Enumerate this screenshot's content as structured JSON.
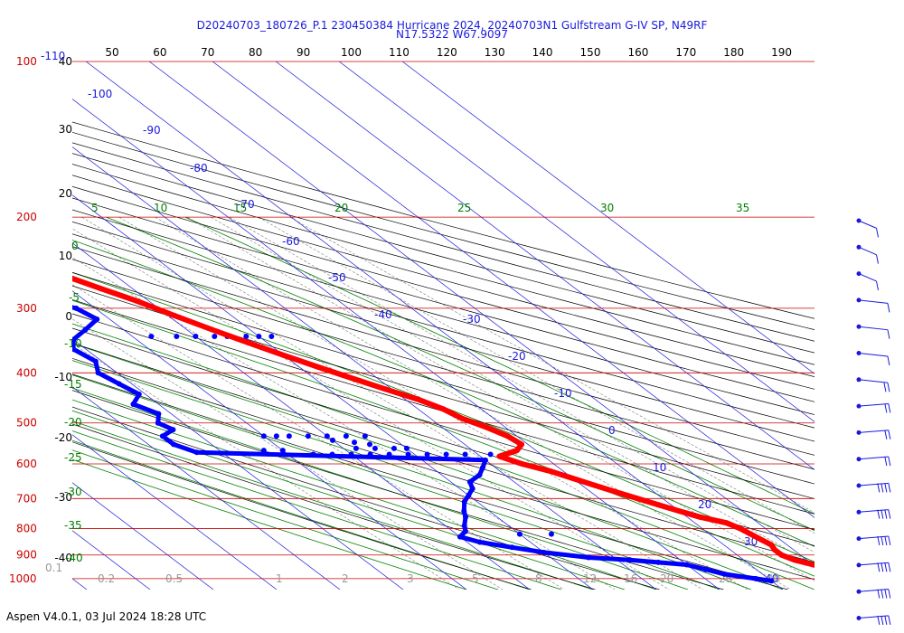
{
  "header": {
    "title_line1": "D20240703_180726_P.1 230450384 Hurricane 2024, 20240703N1 Gulfstream G-IV SP, N49RF",
    "title_line2": "N17.5322 W67.9097"
  },
  "footer": {
    "text": "Aspen V4.0.1, 03 Jul 2024  18:28 UTC"
  },
  "colors": {
    "isobar": "#cc0000",
    "isotherm": "#1a1adc",
    "dry_adiabat": "#000000",
    "moist_adiabat": "#008000",
    "mixing_ratio": "#7a7a7a",
    "temperature": "#ff0000",
    "dewpoint": "#0000ff",
    "wind_barb": "#1a1adc"
  },
  "chart_data": {
    "type": "skew-t",
    "title": "D20240703_180726_P.1 230450384 Hurricane 2024, 20240703N1 Gulfstream G-IV SP, N49RF",
    "subtitle": "N17.5322 W67.9097",
    "pressure_labels": [
      {
        "p": 100,
        "label": "100"
      },
      {
        "p": 200,
        "label": "200"
      },
      {
        "p": 300,
        "label": "300"
      },
      {
        "p": 400,
        "label": "400"
      },
      {
        "p": 500,
        "label": "500"
      },
      {
        "p": 600,
        "label": "600"
      },
      {
        "p": 700,
        "label": "700"
      },
      {
        "p": 800,
        "label": "800"
      },
      {
        "p": 900,
        "label": "900"
      },
      {
        "p": 1000,
        "label": "1000"
      }
    ],
    "isotherm_labels": [
      "-110",
      "-100",
      "-90",
      "-80",
      "-70",
      "-60",
      "-50",
      "-40",
      "-30",
      "-20",
      "-10",
      "0",
      "10",
      "20",
      "30",
      "40"
    ],
    "theta_top_labels": [
      "50",
      "60",
      "70",
      "80",
      "90",
      "100",
      "110",
      "120",
      "130",
      "140",
      "150",
      "160",
      "170",
      "180",
      "190"
    ],
    "left_temp_labels": [
      "40",
      "30",
      "20",
      "10",
      "0",
      "-10",
      "-20",
      "-30",
      "-40"
    ],
    "moist_top_labels": [
      "5",
      "10",
      "15",
      "20",
      "25",
      "30",
      "35"
    ],
    "moist_left_labels": [
      "0",
      "-5",
      "-10",
      "-15",
      "-20",
      "-25",
      "-30",
      "-35",
      "-40"
    ],
    "mixing_ratio_labels": [
      "0.1",
      "0.2",
      "0.5",
      "1",
      "2",
      "3",
      "5",
      "8",
      "12",
      "16",
      "20",
      "28",
      "40"
    ],
    "temperature": [
      [
        200,
        -52
      ],
      [
        215,
        -48.5
      ],
      [
        230,
        -45
      ],
      [
        245,
        -41
      ],
      [
        260,
        -38
      ],
      [
        275,
        -35
      ],
      [
        290,
        -32
      ],
      [
        310,
        -29
      ],
      [
        330,
        -26
      ],
      [
        350,
        -23
      ],
      [
        370,
        -20
      ],
      [
        390,
        -17
      ],
      [
        410,
        -14
      ],
      [
        430,
        -11
      ],
      [
        450,
        -8
      ],
      [
        470,
        -6
      ],
      [
        490,
        -5
      ],
      [
        510,
        -3
      ],
      [
        530,
        -1.5
      ],
      [
        550,
        -1
      ],
      [
        565,
        -3
      ],
      [
        580,
        -7
      ],
      [
        600,
        -5
      ],
      [
        620,
        -2
      ],
      [
        640,
        0
      ],
      [
        660,
        2
      ],
      [
        680,
        4
      ],
      [
        700,
        6
      ],
      [
        720,
        8
      ],
      [
        740,
        10
      ],
      [
        760,
        12
      ],
      [
        780,
        15
      ],
      [
        800,
        16
      ],
      [
        820,
        16.5
      ],
      [
        840,
        17
      ],
      [
        860,
        17.5
      ],
      [
        880,
        17
      ],
      [
        900,
        17
      ],
      [
        920,
        18
      ],
      [
        940,
        20
      ],
      [
        960,
        22
      ],
      [
        980,
        24
      ],
      [
        1000,
        26
      ],
      [
        1010,
        27
      ]
    ],
    "dewpoint": [
      [
        250,
        -60
      ],
      [
        265,
        -57
      ],
      [
        280,
        -52
      ],
      [
        295,
        -45
      ],
      [
        300,
        -43
      ],
      [
        315,
        -42
      ],
      [
        330,
        -46
      ],
      [
        345,
        -50
      ],
      [
        360,
        -52
      ],
      [
        380,
        -51
      ],
      [
        400,
        -53
      ],
      [
        420,
        -52
      ],
      [
        440,
        -51
      ],
      [
        460,
        -54
      ],
      [
        480,
        -52
      ],
      [
        500,
        -54
      ],
      [
        515,
        -53
      ],
      [
        530,
        -56
      ],
      [
        550,
        -56
      ],
      [
        570,
        -54
      ],
      [
        590,
        -10
      ],
      [
        610,
        -12
      ],
      [
        630,
        -14
      ],
      [
        650,
        -17
      ],
      [
        670,
        -18
      ],
      [
        690,
        -20
      ],
      [
        710,
        -22
      ],
      [
        740,
        -24
      ],
      [
        760,
        -25
      ],
      [
        790,
        -27
      ],
      [
        810,
        -28
      ],
      [
        830,
        -30
      ],
      [
        850,
        -28
      ],
      [
        870,
        -24
      ],
      [
        890,
        -20
      ],
      [
        910,
        -14
      ],
      [
        920,
        -8
      ],
      [
        930,
        -4
      ],
      [
        940,
        0
      ],
      [
        960,
        2
      ],
      [
        980,
        4
      ],
      [
        1000,
        8
      ],
      [
        1010,
        10
      ]
    ],
    "dewpoint_scatter": [
      [
        340,
        -37
      ],
      [
        340,
        -33
      ],
      [
        340,
        -30
      ],
      [
        340,
        -27
      ],
      [
        340,
        -25
      ],
      [
        340,
        -22
      ],
      [
        340,
        -20
      ],
      [
        340,
        -18
      ],
      [
        530,
        -40
      ],
      [
        530,
        -38
      ],
      [
        530,
        -36
      ],
      [
        530,
        -33
      ],
      [
        530,
        -30
      ],
      [
        530,
        -27
      ],
      [
        530,
        -24
      ],
      [
        540,
        -30
      ],
      [
        545,
        -27
      ],
      [
        550,
        -25
      ],
      [
        560,
        -28
      ],
      [
        560,
        -25
      ],
      [
        560,
        -22
      ],
      [
        560,
        -20
      ],
      [
        575,
        -36
      ],
      [
        575,
        -33
      ],
      [
        575,
        -30
      ],
      [
        575,
        -27
      ],
      [
        575,
        -24
      ],
      [
        575,
        -21
      ],
      [
        575,
        -18
      ],
      [
        575,
        -15
      ],
      [
        575,
        -12
      ],
      [
        575,
        -8
      ],
      [
        565,
        -40
      ],
      [
        565,
        -43
      ],
      [
        820,
        -20
      ],
      [
        820,
        -15
      ]
    ],
    "wind_levels": [
      200,
      250,
      300,
      350,
      400,
      450,
      500,
      550,
      600,
      650,
      700,
      750,
      800,
      850,
      900,
      950,
      1000
    ]
  }
}
